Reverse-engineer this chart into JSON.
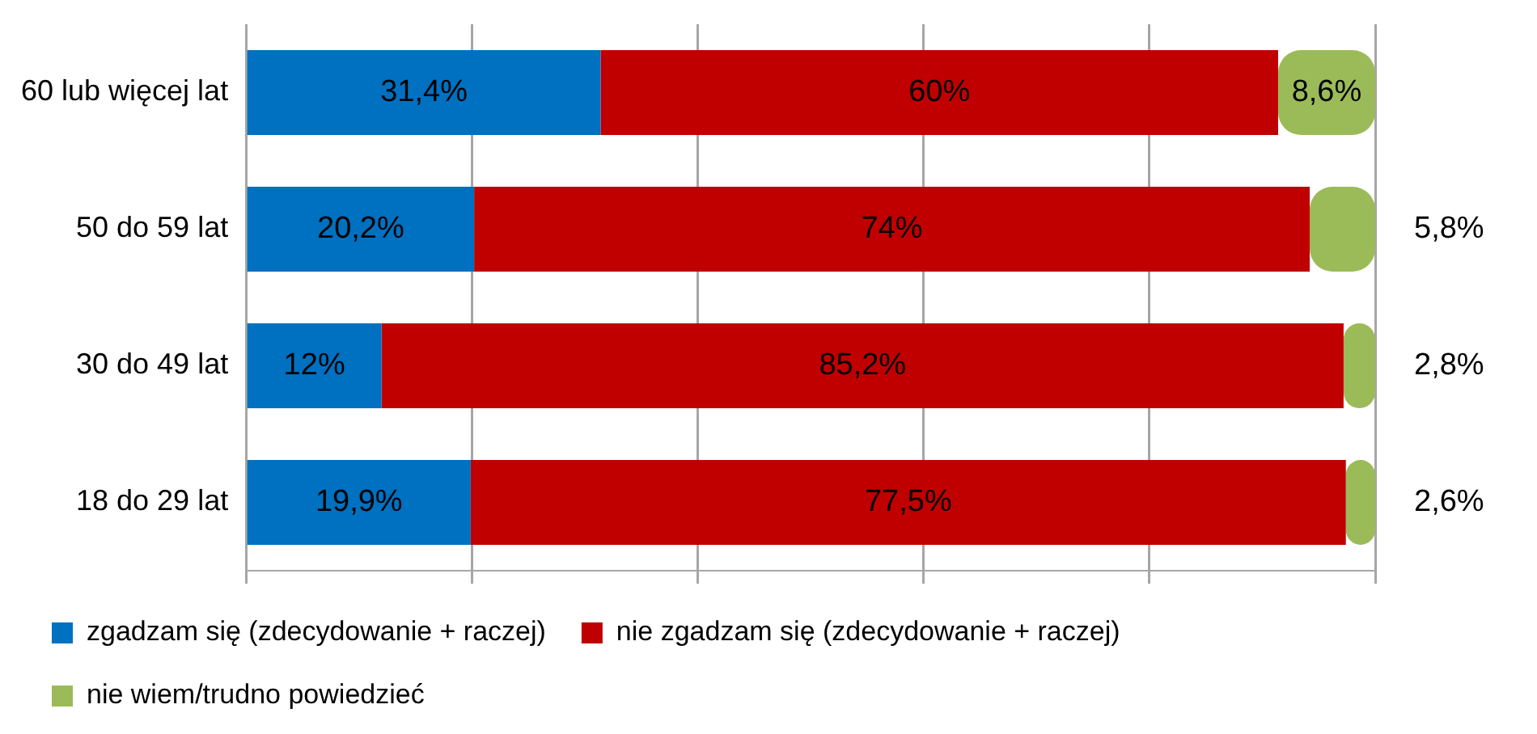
{
  "chart_data": {
    "type": "bar",
    "orientation": "horizontal",
    "stacked": true,
    "categories": [
      "60 lub więcej lat",
      "50 do 59 lat",
      "30 do 49 lat",
      "18 do 29 lat"
    ],
    "series": [
      {
        "name": "zgadzam się (zdecydowanie + raczej)",
        "color": "#0070c0",
        "values": [
          31.4,
          20.2,
          12,
          19.9
        ],
        "value_labels": [
          "31,4%",
          "20,2%",
          "12%",
          "19,9%"
        ]
      },
      {
        "name": "nie zgadzam się (zdecydowanie + raczej)",
        "color": "#c00000",
        "values": [
          60,
          74,
          85.2,
          77.5
        ],
        "value_labels": [
          "60%",
          "74%",
          "85,2%",
          "77,5%"
        ]
      },
      {
        "name": "nie wiem/trudno powiedzieć",
        "color": "#9bbb59",
        "values": [
          8.6,
          5.8,
          2.8,
          2.6
        ],
        "value_labels": [
          "8,6%",
          "5,8%",
          "2,8%",
          "2,6%"
        ]
      }
    ],
    "xlim": [
      0,
      100
    ],
    "xticks": [
      {
        "value": 0,
        "label": null
      },
      {
        "value": 20,
        "label": null
      },
      {
        "value": 40,
        "label": null
      },
      {
        "value": 60,
        "label": null
      },
      {
        "value": 80,
        "label": null
      },
      {
        "value": 100,
        "label": null
      }
    ],
    "grid": "x",
    "tick_labels": "y",
    "legend": "bottom"
  }
}
